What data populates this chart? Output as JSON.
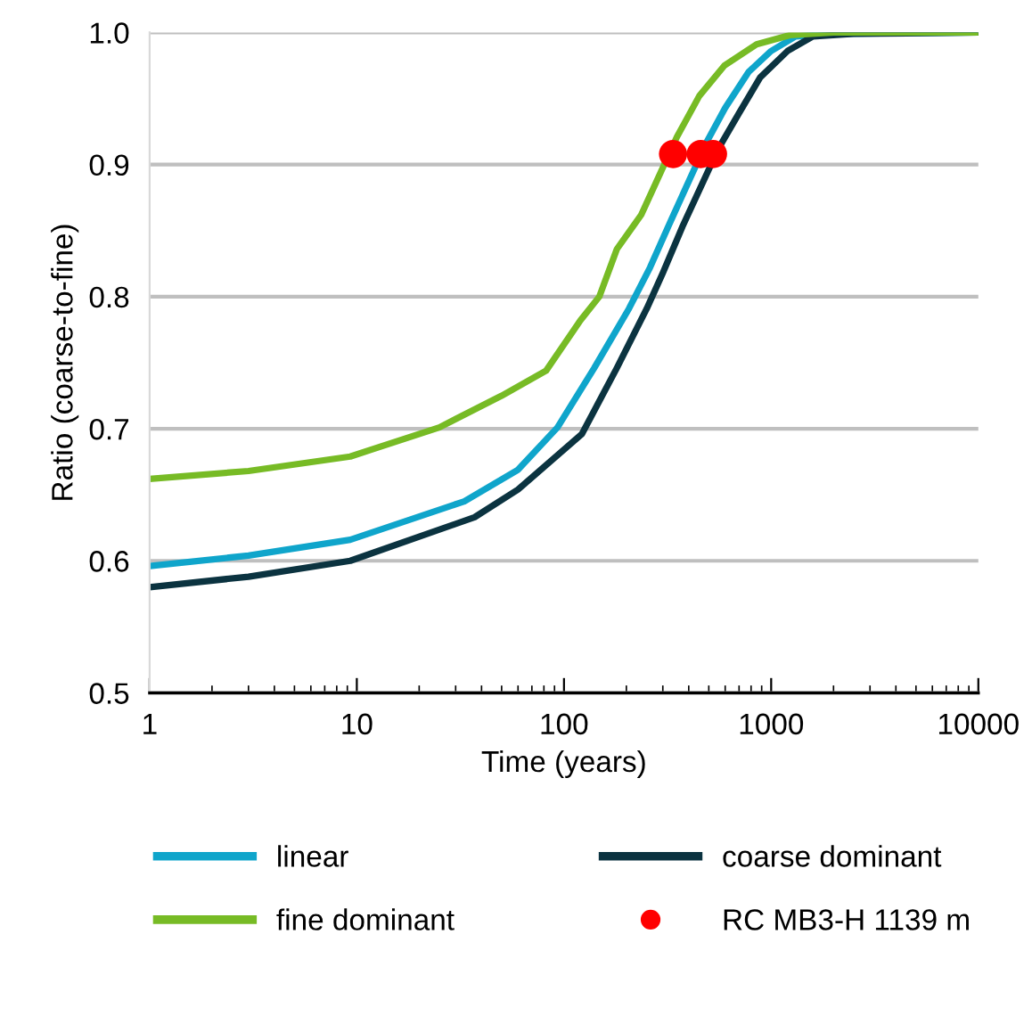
{
  "chart_data": {
    "type": "line",
    "xlabel": "Time (years)",
    "ylabel": "Ratio (coarse-to-fine)",
    "log": "x",
    "grid": "y",
    "legend": "bottom",
    "marker": "none",
    "line_style": "solid",
    "xlim": [
      1,
      10000
    ],
    "xticks": [
      1,
      10,
      100,
      1000,
      10000
    ],
    "ylim": [
      0.5,
      1.0
    ],
    "yticks": [
      0.5,
      0.6,
      0.7,
      0.8,
      0.9,
      {
        "value": 1,
        "label": "1.0"
      }
    ],
    "series": [
      {
        "name": "linear",
        "color": "#0fa5cb",
        "x": [
          1,
          3,
          9.3,
          33,
          60,
          93,
          140,
          206,
          260,
          329,
          488,
          600,
          777,
          1000,
          1310,
          2000,
          10000
        ],
        "values": [
          0.596,
          0.604,
          0.616,
          0.645,
          0.669,
          0.701,
          0.746,
          0.791,
          0.822,
          0.858,
          0.917,
          0.943,
          0.97,
          0.986,
          0.997,
          0.999,
          1.0
        ]
      },
      {
        "name": "coarse dominant",
        "color": "#0b3340",
        "x": [
          1,
          3,
          9.3,
          37,
          60,
          122,
          180,
          251,
          300,
          373,
          556,
          700,
          885,
          1200,
          1590,
          2500,
          10000
        ],
        "values": [
          0.58,
          0.588,
          0.6,
          0.633,
          0.654,
          0.696,
          0.746,
          0.791,
          0.818,
          0.853,
          0.912,
          0.939,
          0.966,
          0.986,
          0.997,
          0.999,
          1.0
        ]
      },
      {
        "name": "fine dominant",
        "color": "#77bb25",
        "x": [
          1,
          3,
          9.3,
          25,
          50,
          82,
          120,
          148,
          180,
          236,
          351,
          450,
          595,
          850,
          1230,
          2000,
          10000
        ],
        "values": [
          0.662,
          0.668,
          0.679,
          0.701,
          0.725,
          0.744,
          0.782,
          0.8,
          0.836,
          0.862,
          0.921,
          0.952,
          0.975,
          0.991,
          0.998,
          1.0,
          1.0
        ]
      },
      {
        "name": "RC MB3-H 1139 m",
        "type": "scatter",
        "marker": "circle",
        "color": "#ff0000",
        "x": [
          336,
          457,
          524
        ],
        "values": [
          0.908,
          0.908,
          0.908
        ]
      }
    ]
  }
}
